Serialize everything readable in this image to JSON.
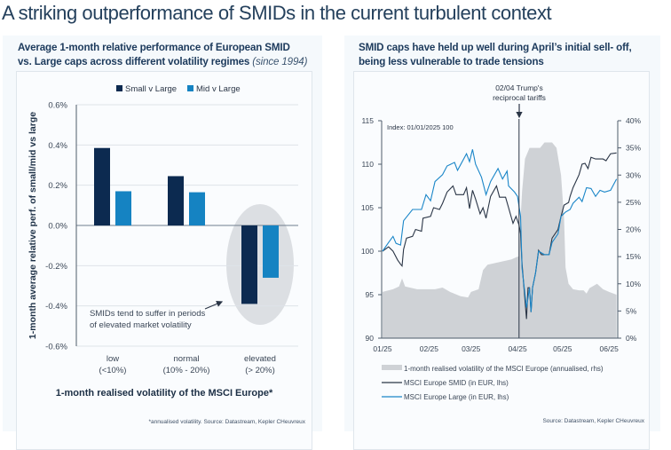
{
  "page_title": "A striking outperformance of SMIDs in the current turbulent context",
  "left": {
    "title_line1": "Average 1-month relative performance of European SMID",
    "title_line2": "vs. Large caps across different volatility regimes",
    "title_italic": "(since 1994)",
    "annotation_line1": "SMIDs tend to suffer in periods",
    "annotation_line2": "of elevated market volatility",
    "footnote": "*annualised volatility. Source: Datastream, Kepler CHeuvreux"
  },
  "right": {
    "title_line1": "SMID caps have held up well during April’s initial sell- off,",
    "title_line2": "being less vulnerable to trade tensions",
    "event_line1": "02/04 Trump's",
    "event_line2": "reciprocal tariffs",
    "index_note": "Index: 01/01/2025  100",
    "source": "Source: Datastream, Kepler CHeuvreux"
  },
  "colors": {
    "navy": "#0c2a50",
    "blue": "#1583c2",
    "vol_gray": "#cfd2d6",
    "highlight": "#dcdfe3"
  },
  "chart_data": [
    {
      "type": "bar",
      "title": "Average 1-month relative performance of European SMID vs. Large caps across different volatility regimes (since 1994)",
      "categories": [
        [
          "low",
          "(<10%)"
        ],
        [
          "normal",
          "(10% - 20%)"
        ],
        [
          "elevated",
          "(> 20%)"
        ]
      ],
      "series": [
        {
          "name": "Small v Large",
          "values": [
            0.385,
            0.245,
            -0.39
          ],
          "color": "#0c2a50"
        },
        {
          "name": "Mid  v Large",
          "values": [
            0.17,
            0.165,
            -0.26
          ],
          "color": "#1583c2"
        }
      ],
      "ylabel": "1-month average relative perf. of small/mid vs large",
      "xlabel": "1-month realised volatility of the MSCI Europe*",
      "ylim": [
        -0.6,
        0.6
      ],
      "yticks": [
        0.6,
        0.4,
        0.2,
        0.0,
        -0.2,
        -0.4,
        -0.6
      ],
      "ytick_labels": [
        "0.6%",
        "0.4%",
        "0.2%",
        "0.0%",
        "-0.2%",
        "-0.4%",
        "-0.6%"
      ],
      "grid": true,
      "legend": "top",
      "highlighted_category": "elevated"
    },
    {
      "type": "line",
      "xlim": [
        "2025-01-01",
        "2025-06-06"
      ],
      "xticks": [
        "2025-01-01",
        "2025-02-01",
        "2025-03-01",
        "2025-04-01",
        "2025-05-01",
        "2025-06-01"
      ],
      "xtick_labels": [
        "01/25",
        "02/25",
        "03/25",
        "04/25",
        "05/25",
        "06/25"
      ],
      "ylim_left": [
        90,
        115
      ],
      "yticks_left": [
        "90",
        "95",
        "100",
        "105",
        "110",
        "115"
      ],
      "ylim_right": [
        0,
        40
      ],
      "yticks_right": [
        "0%",
        "5%",
        "10%",
        "15%",
        "20%",
        "25%",
        "30%",
        "35%",
        "40%"
      ],
      "event_date": "2025-04-02",
      "legend": "bottom",
      "series": [
        {
          "name": "1-month realised volatility of the MSCI Europe (annualised, rhs)",
          "kind": "area",
          "axis": "right",
          "color": "#cfd2d6",
          "x": [
            "2025-01-01",
            "2025-01-08",
            "2025-01-12",
            "2025-01-14",
            "2025-01-16",
            "2025-01-24",
            "2025-02-05",
            "2025-02-10",
            "2025-02-15",
            "2025-02-22",
            "2025-02-27",
            "2025-03-01",
            "2025-03-06",
            "2025-03-09",
            "2025-03-12",
            "2025-03-20",
            "2025-03-28",
            "2025-04-01",
            "2025-04-02",
            "2025-04-03",
            "2025-04-04",
            "2025-04-06",
            "2025-04-09",
            "2025-04-16",
            "2025-04-19",
            "2025-04-24",
            "2025-04-27",
            "2025-04-30",
            "2025-05-02",
            "2025-05-03",
            "2025-05-05",
            "2025-05-08",
            "2025-05-12",
            "2025-05-15",
            "2025-05-17",
            "2025-05-19",
            "2025-05-24",
            "2025-05-28",
            "2025-06-01",
            "2025-06-06"
          ],
          "y": [
            8.5,
            9,
            9.5,
            11,
            9.5,
            9,
            9,
            9.3,
            8.5,
            7.7,
            7.5,
            8.5,
            9,
            12.5,
            13.5,
            14,
            14.5,
            15,
            15,
            22,
            27,
            33,
            35,
            35,
            36,
            36,
            35,
            30,
            22,
            13,
            10,
            9,
            8.8,
            8.8,
            8.2,
            9.2,
            10,
            9,
            8.5,
            8
          ]
        },
        {
          "name": "MSCI Europe SMID (in EUR, lhs)",
          "kind": "line",
          "axis": "left",
          "color": "#2a3546",
          "x": [
            "2025-01-01",
            "2025-01-05",
            "2025-01-08",
            "2025-01-11",
            "2025-01-13",
            "2025-01-14",
            "2025-01-15",
            "2025-01-17",
            "2025-01-21",
            "2025-01-23",
            "2025-01-27",
            "2025-01-28",
            "2025-02-02",
            "2025-02-04",
            "2025-02-08",
            "2025-02-10",
            "2025-02-13",
            "2025-02-17",
            "2025-02-19",
            "2025-02-24",
            "2025-02-26",
            "2025-02-28",
            "2025-03-02",
            "2025-03-04",
            "2025-03-07",
            "2025-03-09",
            "2025-03-11",
            "2025-03-14",
            "2025-03-18",
            "2025-03-20",
            "2025-03-24",
            "2025-03-26",
            "2025-03-29",
            "2025-03-31",
            "2025-04-02",
            "2025-04-03",
            "2025-04-04",
            "2025-04-07",
            "2025-04-08",
            "2025-04-09",
            "2025-04-10",
            "2025-04-11",
            "2025-04-13",
            "2025-04-15",
            "2025-04-17",
            "2025-04-22",
            "2025-04-24",
            "2025-04-28",
            "2025-04-30",
            "2025-05-02",
            "2025-05-05",
            "2025-05-06",
            "2025-05-08",
            "2025-05-12",
            "2025-05-14",
            "2025-05-16",
            "2025-05-18",
            "2025-05-20",
            "2025-05-23",
            "2025-05-28",
            "2025-05-30",
            "2025-06-02",
            "2025-06-06"
          ],
          "y": [
            100,
            100.5,
            100,
            99,
            98.5,
            98.3,
            100.2,
            101.5,
            101.7,
            102.5,
            102.3,
            103.8,
            104,
            105,
            104.8,
            105.5,
            106.8,
            107.5,
            106.5,
            106.5,
            107.3,
            104.9,
            107,
            106,
            104.3,
            105,
            103.8,
            106.3,
            107.5,
            106.2,
            106.2,
            105,
            103.2,
            104,
            103,
            102,
            98.5,
            92.2,
            95.8,
            95.8,
            93,
            95.8,
            97.5,
            100.1,
            99.6,
            99.6,
            101.5,
            102.5,
            104,
            105.3,
            105.6,
            106.3,
            107.3,
            108.8,
            110,
            110.1,
            109.5,
            110.8,
            110.6,
            110.6,
            110.4,
            111.2,
            111.3
          ]
        },
        {
          "name": "MSCI Europe Large (in EUR, lhs)",
          "kind": "line",
          "axis": "left",
          "color": "#1a86c8",
          "x": [
            "2025-01-01",
            "2025-01-05",
            "2025-01-08",
            "2025-01-10",
            "2025-01-13",
            "2025-01-15",
            "2025-01-21",
            "2025-01-27",
            "2025-01-30",
            "2025-02-02",
            "2025-02-05",
            "2025-02-10",
            "2025-02-13",
            "2025-02-18",
            "2025-02-20",
            "2025-02-26",
            "2025-02-28",
            "2025-03-02",
            "2025-03-04",
            "2025-03-08",
            "2025-03-11",
            "2025-03-14",
            "2025-03-19",
            "2025-03-22",
            "2025-03-25",
            "2025-03-26",
            "2025-03-30",
            "2025-04-01",
            "2025-04-03",
            "2025-04-04",
            "2025-04-07",
            "2025-04-09",
            "2025-04-10",
            "2025-04-11",
            "2025-04-13",
            "2025-04-15",
            "2025-04-19",
            "2025-04-22",
            "2025-04-24",
            "2025-04-28",
            "2025-04-30",
            "2025-05-03",
            "2025-05-06",
            "2025-05-08",
            "2025-05-12",
            "2025-05-14",
            "2025-05-17",
            "2025-05-20",
            "2025-05-23",
            "2025-05-26",
            "2025-05-29",
            "2025-06-02",
            "2025-06-06"
          ],
          "y": [
            100,
            101,
            101.7,
            100.9,
            100.7,
            103.5,
            104.8,
            104.8,
            106.5,
            105.8,
            108,
            108.8,
            109.8,
            110.2,
            109.3,
            111.2,
            110.3,
            111.7,
            110,
            108.5,
            106.5,
            108,
            109.5,
            108.3,
            109.2,
            107.5,
            106.8,
            106.3,
            104,
            98,
            93.5,
            95.8,
            93,
            95.8,
            97.5,
            100,
            99.6,
            99.6,
            101,
            102,
            104,
            104.5,
            104.8,
            105.5,
            106.2,
            105.7,
            107.3,
            107.2,
            106.3,
            107,
            106.8,
            107,
            108.3
          ]
        }
      ]
    }
  ]
}
